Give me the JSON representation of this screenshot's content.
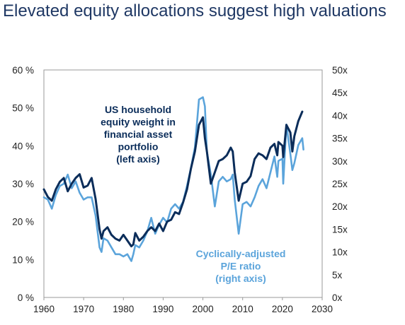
{
  "title": "Elevated equity allocations suggest high valuations",
  "chart_data": {
    "type": "line",
    "title": "Elevated equity allocations suggest high valuations",
    "xlim": [
      1960,
      2030
    ],
    "x_ticks": [
      "1960",
      "1970",
      "1980",
      "1990",
      "2000",
      "2010",
      "2020",
      "2030"
    ],
    "y_left": {
      "lim": [
        0,
        60
      ],
      "ticks": [
        "0 %",
        "10 %",
        "20 %",
        "30 %",
        "40 %",
        "50 %",
        "60 %"
      ]
    },
    "y_right": {
      "lim": [
        0,
        50
      ],
      "ticks": [
        "0x",
        "5x",
        "10x",
        "15x",
        "20x",
        "25x",
        "30x",
        "35x",
        "40x",
        "45x",
        "50x"
      ]
    },
    "grid": false,
    "series": [
      {
        "name": "US household equity weight in financial asset portfolio (left axis)",
        "label_lines": [
          "US household",
          "equity weight in",
          "financial asset",
          "portfolio",
          "(left axis)"
        ],
        "axis": "left",
        "color": "#0b2d5a",
        "points": [
          [
            1960.0,
            28.5
          ],
          [
            1961.0,
            26.5
          ],
          [
            1962.0,
            25.5
          ],
          [
            1963.0,
            28.5
          ],
          [
            1964.0,
            30.5
          ],
          [
            1965.0,
            31.5
          ],
          [
            1966.0,
            28.0
          ],
          [
            1967.0,
            30.0
          ],
          [
            1968.0,
            31.5
          ],
          [
            1969.0,
            32.5
          ],
          [
            1970.0,
            29.0
          ],
          [
            1971.0,
            29.5
          ],
          [
            1972.0,
            31.5
          ],
          [
            1973.0,
            26.0
          ],
          [
            1974.0,
            18.0
          ],
          [
            1974.5,
            15.5
          ],
          [
            1975.0,
            17.5
          ],
          [
            1976.0,
            18.5
          ],
          [
            1977.0,
            16.5
          ],
          [
            1978.0,
            15.5
          ],
          [
            1979.0,
            15.0
          ],
          [
            1980.0,
            16.5
          ],
          [
            1981.0,
            15.0
          ],
          [
            1982.0,
            13.5
          ],
          [
            1982.5,
            14.0
          ],
          [
            1983.0,
            17.0
          ],
          [
            1984.0,
            15.0
          ],
          [
            1985.0,
            16.0
          ],
          [
            1986.0,
            17.5
          ],
          [
            1987.0,
            18.5
          ],
          [
            1988.0,
            17.5
          ],
          [
            1989.0,
            19.5
          ],
          [
            1990.0,
            17.5
          ],
          [
            1991.0,
            20.0
          ],
          [
            1992.0,
            20.5
          ],
          [
            1993.0,
            22.5
          ],
          [
            1994.0,
            22.0
          ],
          [
            1995.0,
            25.0
          ],
          [
            1996.0,
            28.5
          ],
          [
            1997.0,
            34.0
          ],
          [
            1998.0,
            38.5
          ],
          [
            1999.0,
            45.5
          ],
          [
            2000.0,
            47.5
          ],
          [
            2000.5,
            42.0
          ],
          [
            2001.0,
            38.5
          ],
          [
            2002.0,
            30.0
          ],
          [
            2003.0,
            33.0
          ],
          [
            2004.0,
            36.0
          ],
          [
            2005.0,
            36.5
          ],
          [
            2006.0,
            37.5
          ],
          [
            2007.0,
            39.5
          ],
          [
            2007.5,
            38.5
          ],
          [
            2008.0,
            33.0
          ],
          [
            2009.0,
            25.5
          ],
          [
            2010.0,
            30.0
          ],
          [
            2011.0,
            30.5
          ],
          [
            2012.0,
            32.0
          ],
          [
            2013.0,
            36.5
          ],
          [
            2014.0,
            38.0
          ],
          [
            2015.0,
            37.5
          ],
          [
            2016.0,
            36.5
          ],
          [
            2017.0,
            39.5
          ],
          [
            2018.0,
            40.5
          ],
          [
            2018.7,
            37.5
          ],
          [
            2019.0,
            41.0
          ],
          [
            2020.0,
            40.0
          ],
          [
            2020.2,
            37.0
          ],
          [
            2021.0,
            45.5
          ],
          [
            2022.0,
            43.5
          ],
          [
            2022.5,
            38.5
          ],
          [
            2023.0,
            42.5
          ],
          [
            2024.0,
            46.5
          ],
          [
            2025.0,
            49.0
          ]
        ]
      },
      {
        "name": "Cyclically-adjusted P/E ratio (right axis)",
        "label_lines": [
          "Cyclically-adjusted",
          "P/E ratio",
          "(right axis)"
        ],
        "axis": "right",
        "color": "#5ba4db",
        "points": [
          [
            1960.0,
            22.0
          ],
          [
            1961.0,
            21.5
          ],
          [
            1962.0,
            19.5
          ],
          [
            1963.0,
            22.5
          ],
          [
            1964.0,
            24.5
          ],
          [
            1965.0,
            25.0
          ],
          [
            1966.0,
            27.0
          ],
          [
            1967.0,
            24.0
          ],
          [
            1968.0,
            25.5
          ],
          [
            1969.0,
            23.0
          ],
          [
            1970.0,
            21.5
          ],
          [
            1971.0,
            22.0
          ],
          [
            1972.0,
            22.0
          ],
          [
            1973.0,
            18.0
          ],
          [
            1974.0,
            11.0
          ],
          [
            1974.5,
            10.0
          ],
          [
            1975.0,
            13.0
          ],
          [
            1976.0,
            12.5
          ],
          [
            1977.0,
            11.0
          ],
          [
            1978.0,
            9.5
          ],
          [
            1979.0,
            9.5
          ],
          [
            1980.0,
            9.0
          ],
          [
            1981.0,
            9.5
          ],
          [
            1982.0,
            8.0
          ],
          [
            1982.5,
            9.5
          ],
          [
            1983.0,
            11.5
          ],
          [
            1984.0,
            11.0
          ],
          [
            1985.0,
            12.5
          ],
          [
            1986.0,
            14.5
          ],
          [
            1987.0,
            17.5
          ],
          [
            1988.0,
            14.0
          ],
          [
            1989.0,
            16.0
          ],
          [
            1990.0,
            17.5
          ],
          [
            1991.0,
            16.5
          ],
          [
            1992.0,
            19.5
          ],
          [
            1993.0,
            20.5
          ],
          [
            1994.0,
            19.5
          ],
          [
            1995.0,
            21.0
          ],
          [
            1996.0,
            24.5
          ],
          [
            1997.0,
            28.5
          ],
          [
            1998.0,
            33.0
          ],
          [
            1999.0,
            43.5
          ],
          [
            2000.0,
            44.0
          ],
          [
            2000.5,
            42.0
          ],
          [
            2001.0,
            32.0
          ],
          [
            2002.0,
            27.0
          ],
          [
            2003.0,
            20.0
          ],
          [
            2004.0,
            25.5
          ],
          [
            2005.0,
            26.5
          ],
          [
            2006.0,
            25.5
          ],
          [
            2007.0,
            26.0
          ],
          [
            2007.5,
            27.0
          ],
          [
            2008.0,
            21.5
          ],
          [
            2009.0,
            14.0
          ],
          [
            2010.0,
            20.5
          ],
          [
            2011.0,
            21.0
          ],
          [
            2012.0,
            20.0
          ],
          [
            2013.0,
            22.0
          ],
          [
            2014.0,
            24.5
          ],
          [
            2015.0,
            26.0
          ],
          [
            2016.0,
            24.0
          ],
          [
            2017.0,
            27.5
          ],
          [
            2018.0,
            31.0
          ],
          [
            2018.7,
            26.5
          ],
          [
            2019.0,
            30.0
          ],
          [
            2020.0,
            30.5
          ],
          [
            2020.2,
            25.0
          ],
          [
            2021.0,
            38.0
          ],
          [
            2022.0,
            31.5
          ],
          [
            2022.5,
            28.0
          ],
          [
            2023.0,
            29.5
          ],
          [
            2024.0,
            33.5
          ],
          [
            2025.0,
            35.0
          ],
          [
            2025.3,
            32.5
          ]
        ]
      }
    ]
  }
}
